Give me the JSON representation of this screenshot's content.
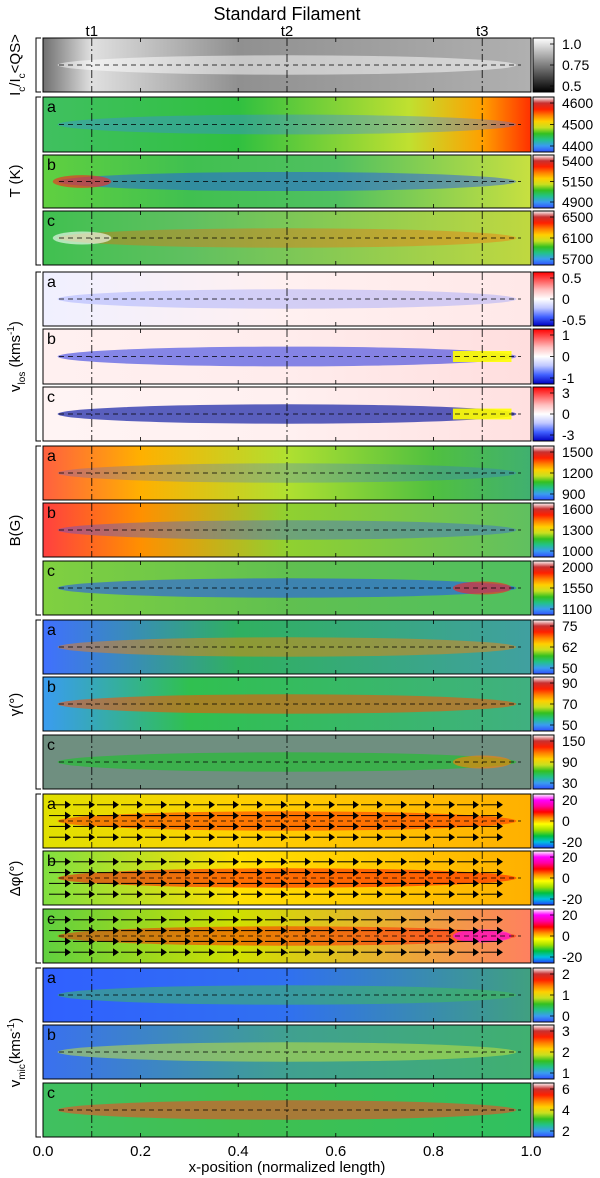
{
  "chart_data": {
    "type": "heatmap",
    "title": "Standard Filament",
    "xlabel": "x-position (normalized length)",
    "xlim": [
      0.0,
      1.0
    ],
    "xticks": [
      "0.0",
      "0.2",
      "0.4",
      "0.6",
      "0.8",
      "1.0"
    ],
    "time_markers": [
      {
        "label": "t1",
        "x": 0.1
      },
      {
        "label": "t2",
        "x": 0.5
      },
      {
        "label": "t3",
        "x": 0.9
      }
    ],
    "groups": [
      {
        "ylabel": "Ic/Ic<QS>",
        "ylabel_main": "I",
        "ylabel_sub": "c",
        "ylabel_rest": "/I",
        "ylabel_sub2": "c",
        "ylabel_tail": "<QS>",
        "colormap": "gray",
        "panels": [
          {
            "letter": "",
            "cbar_ticks": [
              "1.0",
              "0.75",
              "0.5"
            ],
            "range": [
              0.5,
              1.0
            ]
          }
        ]
      },
      {
        "ylabel": "T (K)",
        "ylabel_main": "T (K)",
        "colormap": "rainbow",
        "panels": [
          {
            "letter": "a",
            "cbar_ticks": [
              "4600",
              "4500",
              "4400"
            ],
            "range": [
              4400,
              4600
            ]
          },
          {
            "letter": "b",
            "cbar_ticks": [
              "5400",
              "5150",
              "4900"
            ],
            "range": [
              4900,
              5400
            ]
          },
          {
            "letter": "c",
            "cbar_ticks": [
              "6500",
              "6100",
              "5700"
            ],
            "range": [
              5700,
              6500
            ]
          }
        ]
      },
      {
        "ylabel": "vlos (kms-1)",
        "ylabel_main": "v",
        "ylabel_sub": "los",
        "ylabel_tail": " (kms",
        "ylabel_sup": "-1",
        "ylabel_close": ")",
        "colormap": "bwr",
        "panels": [
          {
            "letter": "a",
            "cbar_ticks": [
              "0.5",
              "0",
              "-0.5"
            ],
            "range": [
              -0.5,
              0.5
            ]
          },
          {
            "letter": "b",
            "cbar_ticks": [
              "1",
              "0",
              "-1"
            ],
            "range": [
              -1,
              1
            ]
          },
          {
            "letter": "c",
            "cbar_ticks": [
              "3",
              "0",
              "-3"
            ],
            "range": [
              -3,
              3
            ]
          }
        ]
      },
      {
        "ylabel": "B(G)",
        "ylabel_main": "B(G)",
        "colormap": "rainbow",
        "panels": [
          {
            "letter": "a",
            "cbar_ticks": [
              "1500",
              "1200",
              "900"
            ],
            "range": [
              900,
              1500
            ]
          },
          {
            "letter": "b",
            "cbar_ticks": [
              "1600",
              "1300",
              "1000"
            ],
            "range": [
              1000,
              1600
            ]
          },
          {
            "letter": "c",
            "cbar_ticks": [
              "2000",
              "1550",
              "1100"
            ],
            "range": [
              1100,
              2000
            ]
          }
        ]
      },
      {
        "ylabel": "γ(°)",
        "ylabel_main": "γ(°)",
        "colormap": "rainbow",
        "panels": [
          {
            "letter": "a",
            "cbar_ticks": [
              "75",
              "62",
              "50"
            ],
            "range": [
              50,
              75
            ]
          },
          {
            "letter": "b",
            "cbar_ticks": [
              "90",
              "70",
              "50"
            ],
            "range": [
              50,
              90
            ]
          },
          {
            "letter": "c",
            "cbar_ticks": [
              "150",
              "90",
              "30"
            ],
            "range": [
              30,
              150
            ]
          }
        ]
      },
      {
        "ylabel": "Δφ(°)",
        "ylabel_main": "Δφ(°)",
        "colormap": "rainbow_magenta",
        "panels": [
          {
            "letter": "a",
            "cbar_ticks": [
              "20",
              "0",
              "-20"
            ],
            "range": [
              -20,
              20
            ]
          },
          {
            "letter": "b",
            "cbar_ticks": [
              "20",
              "0",
              "-20"
            ],
            "range": [
              -20,
              20
            ]
          },
          {
            "letter": "c",
            "cbar_ticks": [
              "20",
              "0",
              "-20"
            ],
            "range": [
              -20,
              20
            ]
          }
        ]
      },
      {
        "ylabel": "vmic(kms-1)",
        "ylabel_main": "v",
        "ylabel_sub": "mic",
        "ylabel_tail": "(kms",
        "ylabel_sup": "-1",
        "ylabel_close": ")",
        "colormap": "rainbow",
        "panels": [
          {
            "letter": "a",
            "cbar_ticks": [
              "2",
              "1",
              "0"
            ],
            "range": [
              0,
              2
            ]
          },
          {
            "letter": "b",
            "cbar_ticks": [
              "3",
              "2",
              "1"
            ],
            "range": [
              1,
              3
            ]
          },
          {
            "letter": "c",
            "cbar_ticks": [
              "6",
              "4",
              "2"
            ],
            "range": [
              2,
              6
            ]
          }
        ]
      }
    ]
  },
  "colors": {
    "gray_low": "#000000",
    "gray_high": "#ffffff",
    "background_gray": "#6f8f80"
  }
}
